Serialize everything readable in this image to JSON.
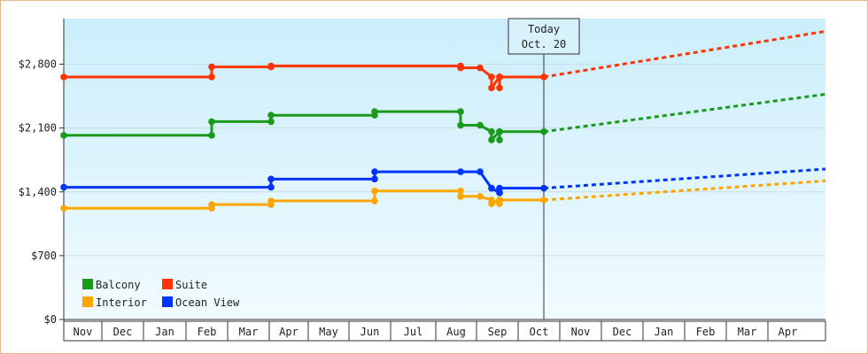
{
  "chart_data": {
    "type": "line",
    "title": "",
    "xlabel": "",
    "ylabel": "",
    "x_ticks": [
      "Nov",
      "Dec",
      "Jan",
      "Feb",
      "Mar",
      "Apr",
      "May",
      "Jun",
      "Jul",
      "Aug",
      "Sep",
      "Oct",
      "Nov",
      "Dec",
      "Jan",
      "Feb",
      "Mar",
      "Apr"
    ],
    "y_ticks": [
      "$0",
      "$700",
      "$1,400",
      "$2,100",
      "$2,800"
    ],
    "ylim": [
      0,
      3300
    ],
    "today_label": [
      "Today",
      "Oct. 20"
    ],
    "legend_placement": "bottom-left",
    "series": [
      {
        "name": "Suite",
        "color": "#ff3300",
        "step_points": [
          [
            "Nov",
            2660
          ],
          [
            "Feb",
            2660
          ],
          [
            "Feb",
            2770
          ],
          [
            "Apr",
            2770
          ],
          [
            "Apr",
            2780
          ],
          [
            "Aug",
            2780
          ],
          [
            "Aug",
            2760
          ],
          [
            "Sep",
            2760
          ],
          [
            "Sep",
            2660
          ],
          [
            "Sep",
            2540
          ],
          [
            "Sep",
            2660
          ],
          [
            "Sep",
            2540
          ],
          [
            "Sep",
            2660
          ],
          [
            "Oct 20",
            2660
          ]
        ],
        "forecast": [
          [
            "Oct 20",
            2660
          ],
          [
            "Apr",
            3160
          ]
        ]
      },
      {
        "name": "Balcony",
        "color": "#1a9a1a",
        "step_points": [
          [
            "Nov",
            2020
          ],
          [
            "Feb",
            2020
          ],
          [
            "Feb",
            2170
          ],
          [
            "Apr",
            2170
          ],
          [
            "Apr",
            2240
          ],
          [
            "Jun",
            2240
          ],
          [
            "Jun",
            2280
          ],
          [
            "Aug",
            2280
          ],
          [
            "Aug",
            2130
          ],
          [
            "Sep",
            2130
          ],
          [
            "Sep",
            2060
          ],
          [
            "Sep",
            1970
          ],
          [
            "Sep",
            2060
          ],
          [
            "Sep",
            1970
          ],
          [
            "Sep",
            2060
          ],
          [
            "Oct 20",
            2060
          ]
        ],
        "forecast": [
          [
            "Oct 20",
            2060
          ],
          [
            "Apr",
            2470
          ]
        ]
      },
      {
        "name": "Ocean View",
        "color": "#0033ff",
        "step_points": [
          [
            "Nov",
            1450
          ],
          [
            "Apr",
            1450
          ],
          [
            "Apr",
            1540
          ],
          [
            "Jun",
            1540
          ],
          [
            "Jun",
            1620
          ],
          [
            "Aug",
            1620
          ],
          [
            "Sep",
            1620
          ],
          [
            "Sep",
            1440
          ],
          [
            "Sep",
            1440
          ],
          [
            "Sep",
            1390
          ],
          [
            "Sep",
            1440
          ],
          [
            "Sep",
            1390
          ],
          [
            "Sep",
            1440
          ],
          [
            "Oct 20",
            1440
          ]
        ],
        "forecast": [
          [
            "Oct 20",
            1440
          ],
          [
            "Apr",
            1650
          ]
        ]
      },
      {
        "name": "Interior",
        "color": "#ffa500",
        "step_points": [
          [
            "Nov",
            1220
          ],
          [
            "Feb",
            1220
          ],
          [
            "Feb",
            1260
          ],
          [
            "Apr",
            1260
          ],
          [
            "Apr",
            1300
          ],
          [
            "Jun",
            1300
          ],
          [
            "Jun",
            1410
          ],
          [
            "Aug",
            1410
          ],
          [
            "Aug",
            1350
          ],
          [
            "Sep",
            1350
          ],
          [
            "Sep",
            1310
          ],
          [
            "Sep",
            1270
          ],
          [
            "Sep",
            1310
          ],
          [
            "Sep",
            1270
          ],
          [
            "Sep",
            1310
          ],
          [
            "Oct 20",
            1310
          ]
        ],
        "forecast": [
          [
            "Oct 20",
            1310
          ],
          [
            "Apr",
            1520
          ]
        ]
      }
    ],
    "legend": [
      {
        "label": "Balcony",
        "color": "#1a9a1a"
      },
      {
        "label": "Suite",
        "color": "#ff3300"
      },
      {
        "label": "Interior",
        "color": "#ffa500"
      },
      {
        "label": "Ocean View",
        "color": "#0033ff"
      }
    ]
  }
}
